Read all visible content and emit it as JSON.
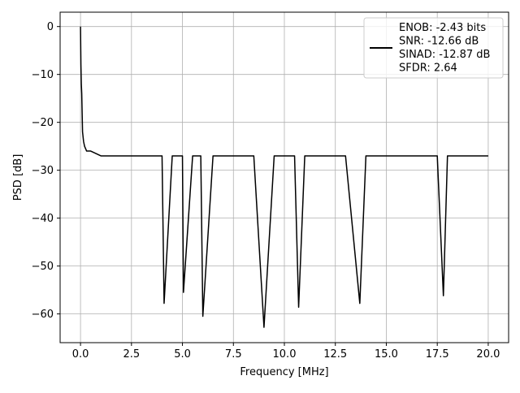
{
  "chart_data": {
    "type": "line",
    "title": "",
    "xlabel": "Frequency [MHz]",
    "ylabel": "PSD [dB]",
    "xlim": [
      -1.0,
      21.0
    ],
    "ylim": [
      -66,
      3
    ],
    "xticks": [
      0.0,
      2.5,
      5.0,
      7.5,
      10.0,
      12.5,
      15.0,
      17.5,
      20.0
    ],
    "xtick_labels": [
      "0.0",
      "2.5",
      "5.0",
      "7.5",
      "10.0",
      "12.5",
      "15.0",
      "17.5",
      "20.0"
    ],
    "yticks": [
      0,
      -10,
      -20,
      -30,
      -40,
      -50,
      -60
    ],
    "ytick_labels": [
      "0",
      "−10",
      "−20",
      "−30",
      "−40",
      "−50",
      "−60"
    ],
    "grid": true,
    "legend_position": "top-right",
    "legend_lines": [
      "ENOB: -2.43 bits",
      "SNR: -12.66 dB",
      "SINAD: -12.87 dB",
      "SFDR: 2.64"
    ],
    "series": [
      {
        "color": "#000000",
        "note_freq_range_mhz": [
          0,
          20
        ],
        "x": [
          0.0,
          0.02,
          0.04,
          0.06,
          0.08,
          0.1,
          0.15,
          0.2,
          0.3,
          0.4,
          0.5,
          1.0,
          1.5,
          2.0,
          2.5,
          3.0,
          3.5,
          4.0,
          4.1,
          4.5,
          5.0,
          5.05,
          5.5,
          5.9,
          6.0,
          6.5,
          7.0,
          7.5,
          8.0,
          8.5,
          9.0,
          9.5,
          10.0,
          10.5,
          10.7,
          11.0,
          11.5,
          12.0,
          12.5,
          13.0,
          13.7,
          14.0,
          14.5,
          15.0,
          15.5,
          16.0,
          16.5,
          17.0,
          17.5,
          17.8,
          18.0,
          18.5,
          19.0,
          19.5,
          20.0
        ],
        "y": [
          0.0,
          -8.0,
          -12.0,
          -14.0,
          -18.0,
          -22.0,
          -24.0,
          -25.0,
          -26.0,
          -26.0,
          -26.0,
          -27.0,
          -27.0,
          -27.0,
          -27.0,
          -27.0,
          -27.0,
          -27.0,
          -57.8,
          -27.0,
          -27.0,
          -55.5,
          -27.0,
          -27.0,
          -60.5,
          -27.0,
          -27.0,
          -27.0,
          -27.0,
          -27.0,
          -62.8,
          -27.0,
          -27.0,
          -27.0,
          -58.6,
          -27.0,
          -27.0,
          -27.0,
          -27.0,
          -27.0,
          -57.8,
          -27.0,
          -27.0,
          -27.0,
          -27.0,
          -27.0,
          -27.0,
          -27.0,
          -27.0,
          -56.2,
          -27.0,
          -27.0,
          -27.0,
          -27.0,
          -27.0
        ]
      }
    ]
  }
}
